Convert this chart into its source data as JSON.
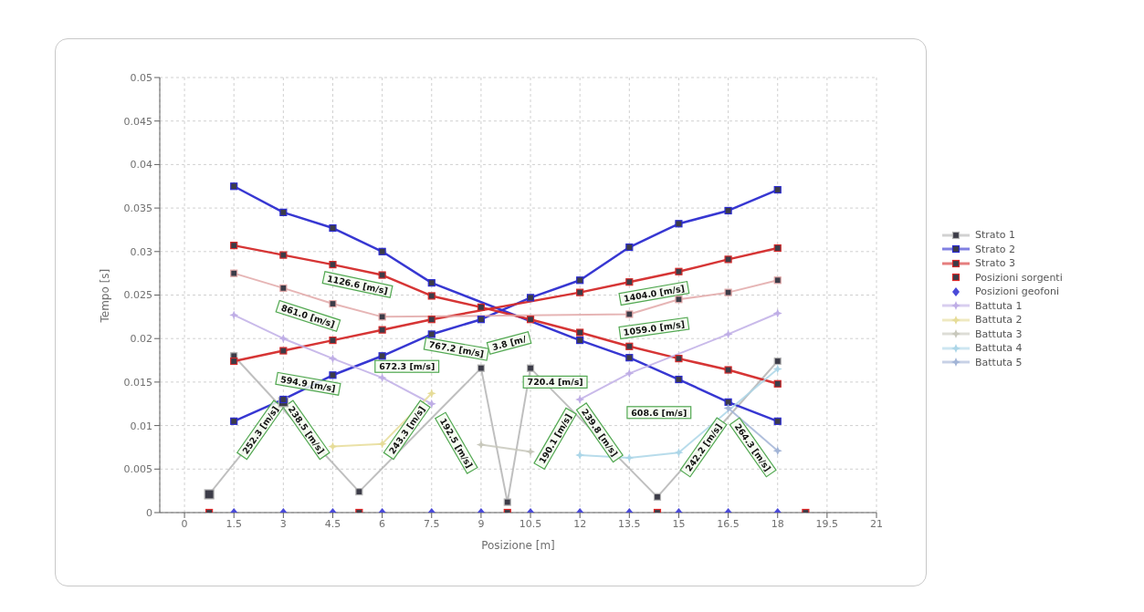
{
  "chart_data": {
    "type": "line",
    "xlabel": "Posizione [m]",
    "ylabel": "Tempo [s]",
    "xlim": [
      -0.75,
      21
    ],
    "xticks": [
      0,
      1.5,
      3,
      4.5,
      6,
      7.5,
      9,
      10.5,
      12,
      13.5,
      15,
      16.5,
      18,
      19.5,
      21
    ],
    "ylim": [
      0,
      0.05
    ],
    "yticks": [
      0,
      0.005,
      0.01,
      0.015,
      0.02,
      0.025,
      0.03,
      0.035,
      0.04,
      0.045,
      0.05
    ],
    "grid": true,
    "legend": "right",
    "line_style": "solid",
    "series": [
      {
        "name": "Strato 1",
        "color": "#b4b4b4",
        "marker": "square",
        "x": [
          1.5,
          5.3,
          9,
          9.8,
          10.5,
          14.35,
          18
        ],
        "values": [
          0.018,
          0.0024,
          0.0166,
          0.0012,
          0.0166,
          0.0018,
          0.0174
        ]
      },
      {
        "color": "#b4b4b4",
        "marker": "square",
        "x": [
          0.75,
          3
        ],
        "values": [
          0.0021,
          0.0127
        ]
      },
      {
        "name": "Strato 2",
        "color": "#2c2cd0",
        "marker": "square",
        "x": [
          1.5,
          3,
          4.5,
          6,
          7.5,
          12,
          13.5,
          15,
          16.5,
          18
        ],
        "values": [
          0.0375,
          0.0345,
          0.0327,
          0.03,
          0.0264,
          0.0198,
          0.0178,
          0.0153,
          0.0127,
          0.0105
        ]
      },
      {
        "color": "#2c2cd0",
        "marker": "square",
        "x": [
          1.5,
          3,
          4.5,
          6,
          7.5,
          9,
          10.5,
          12,
          13.5,
          15,
          16.5,
          18
        ],
        "values": [
          0.0105,
          0.013,
          0.0158,
          0.018,
          0.0205,
          0.0222,
          0.0247,
          0.0267,
          0.0305,
          0.0332,
          0.0347,
          0.0371
        ]
      },
      {
        "name": "Strato 3",
        "color": "#d42a2a",
        "marker": "square",
        "x": [
          1.5,
          3,
          4.5,
          6,
          7.5,
          9,
          10.5,
          12,
          13.5,
          15,
          16.5,
          18
        ],
        "values": [
          0.0307,
          0.0296,
          0.0285,
          0.0273,
          0.0249,
          0.0236,
          0.0222,
          0.0207,
          0.0191,
          0.0177,
          0.0164,
          0.0148
        ]
      },
      {
        "color": "#d42a2a",
        "marker": "square",
        "x": [
          1.5,
          3,
          4.5,
          6,
          7.5,
          12,
          13.5,
          15,
          16.5,
          18
        ],
        "values": [
          0.0174,
          0.0186,
          0.0198,
          0.021,
          0.0222,
          0.0253,
          0.0265,
          0.0277,
          0.0291,
          0.0304
        ]
      },
      {
        "color": "#e2a8a8",
        "marker": "square",
        "x": [
          1.5,
          3,
          4.5,
          6,
          13.5,
          15,
          16.5,
          18
        ],
        "values": [
          0.0275,
          0.0258,
          0.024,
          0.0225,
          0.0228,
          0.0245,
          0.0253,
          0.0267
        ]
      },
      {
        "name": "Posizioni sorgenti",
        "type": "scatter",
        "color": "#e02828",
        "marker": "square",
        "x": [
          0.75,
          5.3,
          9.8,
          14.35,
          18.85
        ],
        "values": [
          0,
          0,
          0,
          0,
          0
        ]
      },
      {
        "name": "Posizioni geofoni",
        "type": "scatter",
        "color": "#4a4ad8",
        "marker": "diamond",
        "x": [
          1.5,
          3,
          4.5,
          6,
          7.5,
          9,
          10.5,
          12,
          13.5,
          15,
          16.5,
          18
        ],
        "values": [
          0,
          0,
          0,
          0,
          0,
          0,
          0,
          0,
          0,
          0,
          0,
          0
        ]
      },
      {
        "name": "Battuta 1",
        "color": "#bfaee6",
        "marker": "star",
        "x": [
          1.5,
          3,
          4.5,
          6,
          7.5
        ],
        "values": [
          0.0227,
          0.02,
          0.0177,
          0.0155,
          0.0125
        ]
      },
      {
        "color": "#bfaee6",
        "marker": "star",
        "x": [
          12,
          13.5,
          16.5,
          18
        ],
        "values": [
          0.013,
          0.016,
          0.0205,
          0.0229
        ]
      },
      {
        "name": "Battuta 2",
        "color": "#e6dc98",
        "marker": "star",
        "x": [
          4.5,
          6,
          7.5
        ],
        "values": [
          0.0076,
          0.0079,
          0.0137
        ]
      },
      {
        "name": "Battuta 3",
        "color": "#c8c8bc",
        "marker": "star",
        "x": [
          9,
          10.5
        ],
        "values": [
          0.0078,
          0.007
        ]
      },
      {
        "name": "Battuta 4",
        "color": "#acd6e8",
        "marker": "star",
        "x": [
          12,
          13.5,
          15,
          18
        ],
        "values": [
          0.0066,
          0.0063,
          0.0069,
          0.0165
        ]
      },
      {
        "name": "Battuta 5",
        "color": "#a2b4d6",
        "marker": "star",
        "x": [
          16.5,
          18
        ],
        "values": [
          0.012,
          0.0071
        ]
      }
    ],
    "annotations": [
      "1126.6 [m/s]",
      "861.0 [m/s]",
      "594.9 [m/s]",
      "672.3 [m/s]",
      "767.2 [m/s]",
      "3.8 [m/",
      "720.4 [m/s]",
      "1404.0 [m/s]",
      "1059.0 [m/s]",
      "608.6 [m/s]",
      "238.5 [m/s]",
      "252.3 [m/s]",
      "243.3 [m/s]",
      "192.5 [m/s]",
      "190.1 [m/s]",
      "239.8 [m/s]",
      "242.2 [m/s]",
      "264.3 [m/s]"
    ]
  }
}
